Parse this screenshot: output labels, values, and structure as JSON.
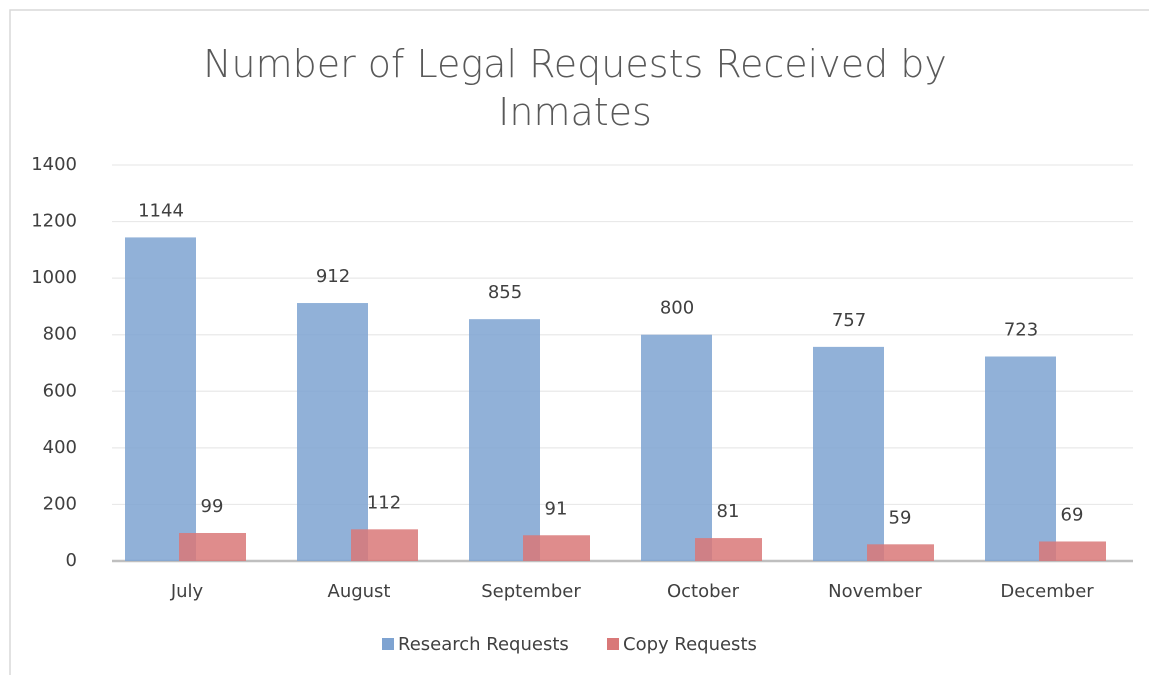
{
  "chart_data": {
    "type": "bar",
    "title": "Number of Legal Requests Received by Inmates",
    "categories": [
      "July",
      "August",
      "September",
      "October",
      "November",
      "December"
    ],
    "series": [
      {
        "name": "Research Requests",
        "color": "#7ea3d1",
        "values": [
          1144,
          912,
          855,
          800,
          757,
          723
        ]
      },
      {
        "name": "Copy Requests",
        "color": "#d97878",
        "values": [
          99,
          112,
          91,
          81,
          59,
          69
        ]
      }
    ],
    "ylim": [
      0,
      1400
    ],
    "yticks": [
      0,
      200,
      400,
      600,
      800,
      1000,
      1200,
      1400
    ],
    "grid": true,
    "legend": "bottom"
  }
}
